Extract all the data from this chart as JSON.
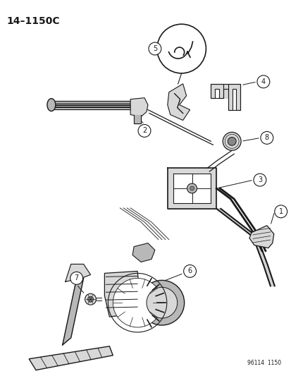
{
  "title": "14–1150C",
  "figure_number": "96114  1150",
  "background_color": "#ffffff",
  "line_color": "#1a1a1a",
  "gray_light": "#d8d8d8",
  "gray_med": "#b8b8b8",
  "gray_dark": "#888888"
}
